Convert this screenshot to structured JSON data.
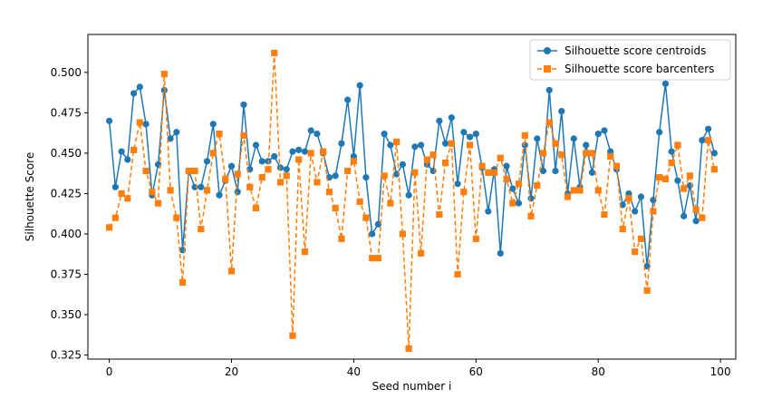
{
  "colors": {
    "centroids": "#1f77b4",
    "barcenters": "#ff7f0e"
  },
  "chart_data": {
    "type": "line",
    "xlabel": "Seed number i",
    "ylabel": "Silhouette Score",
    "xlim": [
      -3.5,
      102.5
    ],
    "ylim": [
      0.3225,
      0.5235
    ],
    "xticks": [
      0,
      20,
      40,
      60,
      80,
      100
    ],
    "yticks": [
      0.325,
      0.35,
      0.375,
      0.4,
      0.425,
      0.45,
      0.475,
      0.5
    ],
    "ytick_labels": [
      "0.325",
      "0.350",
      "0.375",
      "0.400",
      "0.425",
      "0.450",
      "0.475",
      "0.500"
    ],
    "grid": false,
    "legend_position": "top-right",
    "series": [
      {
        "name": "Silhouette score centroids",
        "marker": "circle",
        "linestyle": "solid",
        "x": [
          0,
          1,
          2,
          3,
          4,
          5,
          6,
          7,
          8,
          9,
          10,
          11,
          12,
          13,
          14,
          15,
          16,
          17,
          18,
          19,
          20,
          21,
          22,
          23,
          24,
          25,
          26,
          27,
          28,
          29,
          30,
          31,
          32,
          33,
          34,
          35,
          36,
          37,
          38,
          39,
          40,
          41,
          42,
          43,
          44,
          45,
          46,
          47,
          48,
          49,
          50,
          51,
          52,
          53,
          54,
          55,
          56,
          57,
          58,
          59,
          60,
          61,
          62,
          63,
          64,
          65,
          66,
          67,
          68,
          69,
          70,
          71,
          72,
          73,
          74,
          75,
          76,
          77,
          78,
          79,
          80,
          81,
          82,
          83,
          84,
          85,
          86,
          87,
          88,
          89,
          90,
          91,
          92,
          93,
          94,
          95,
          96,
          97,
          98,
          99
        ],
        "values": [
          0.47,
          0.429,
          0.451,
          0.446,
          0.487,
          0.491,
          0.468,
          0.424,
          0.443,
          0.489,
          0.459,
          0.463,
          0.39,
          0.439,
          0.429,
          0.429,
          0.445,
          0.468,
          0.424,
          0.433,
          0.442,
          0.426,
          0.48,
          0.44,
          0.455,
          0.445,
          0.445,
          0.448,
          0.441,
          0.44,
          0.451,
          0.452,
          0.451,
          0.464,
          0.462,
          0.45,
          0.435,
          0.436,
          0.456,
          0.483,
          0.448,
          0.492,
          0.435,
          0.4,
          0.406,
          0.462,
          0.455,
          0.437,
          0.443,
          0.424,
          0.454,
          0.455,
          0.443,
          0.439,
          0.47,
          0.456,
          0.472,
          0.431,
          0.463,
          0.46,
          0.462,
          0.441,
          0.414,
          0.44,
          0.388,
          0.442,
          0.428,
          0.419,
          0.455,
          0.422,
          0.459,
          0.439,
          0.489,
          0.439,
          0.476,
          0.425,
          0.459,
          0.429,
          0.455,
          0.438,
          0.462,
          0.464,
          0.451,
          0.44,
          0.418,
          0.425,
          0.414,
          0.423,
          0.38,
          0.421,
          0.463,
          0.493,
          0.451,
          0.433,
          0.411,
          0.43,
          0.408,
          0.458,
          0.465,
          0.45
        ]
      },
      {
        "name": "Silhouette score barcenters",
        "marker": "square",
        "linestyle": "dashed",
        "x": [
          0,
          1,
          2,
          3,
          4,
          5,
          6,
          7,
          8,
          9,
          10,
          11,
          12,
          13,
          14,
          15,
          16,
          17,
          18,
          19,
          20,
          21,
          22,
          23,
          24,
          25,
          26,
          27,
          28,
          29,
          30,
          31,
          32,
          33,
          34,
          35,
          36,
          37,
          38,
          39,
          40,
          41,
          42,
          43,
          44,
          45,
          46,
          47,
          48,
          49,
          50,
          51,
          52,
          53,
          54,
          55,
          56,
          57,
          58,
          59,
          60,
          61,
          62,
          63,
          64,
          65,
          66,
          67,
          68,
          69,
          70,
          71,
          72,
          73,
          74,
          75,
          76,
          77,
          78,
          79,
          80,
          81,
          82,
          83,
          84,
          85,
          86,
          87,
          88,
          89,
          90,
          91,
          92,
          93,
          94,
          95,
          96,
          97,
          98,
          99
        ],
        "values": [
          0.404,
          0.41,
          0.425,
          0.422,
          0.452,
          0.469,
          0.439,
          0.426,
          0.419,
          0.499,
          0.427,
          0.41,
          0.37,
          0.439,
          0.439,
          0.403,
          0.427,
          0.45,
          0.462,
          0.434,
          0.377,
          0.437,
          0.461,
          0.429,
          0.416,
          0.435,
          0.44,
          0.512,
          0.432,
          0.436,
          0.337,
          0.446,
          0.389,
          0.45,
          0.432,
          0.451,
          0.426,
          0.416,
          0.397,
          0.439,
          0.445,
          0.42,
          0.41,
          0.385,
          0.385,
          0.436,
          0.419,
          0.457,
          0.4,
          0.329,
          0.438,
          0.388,
          0.446,
          0.449,
          0.412,
          0.444,
          0.456,
          0.375,
          0.426,
          0.455,
          0.397,
          0.442,
          0.438,
          0.438,
          0.447,
          0.434,
          0.419,
          0.431,
          0.461,
          0.411,
          0.43,
          0.45,
          0.469,
          0.456,
          0.449,
          0.423,
          0.427,
          0.427,
          0.45,
          0.45,
          0.427,
          0.412,
          0.448,
          0.442,
          0.403,
          0.422,
          0.389,
          0.397,
          0.365,
          0.414,
          0.435,
          0.434,
          0.444,
          0.455,
          0.428,
          0.436,
          0.415,
          0.41,
          0.458,
          0.44
        ]
      }
    ]
  }
}
